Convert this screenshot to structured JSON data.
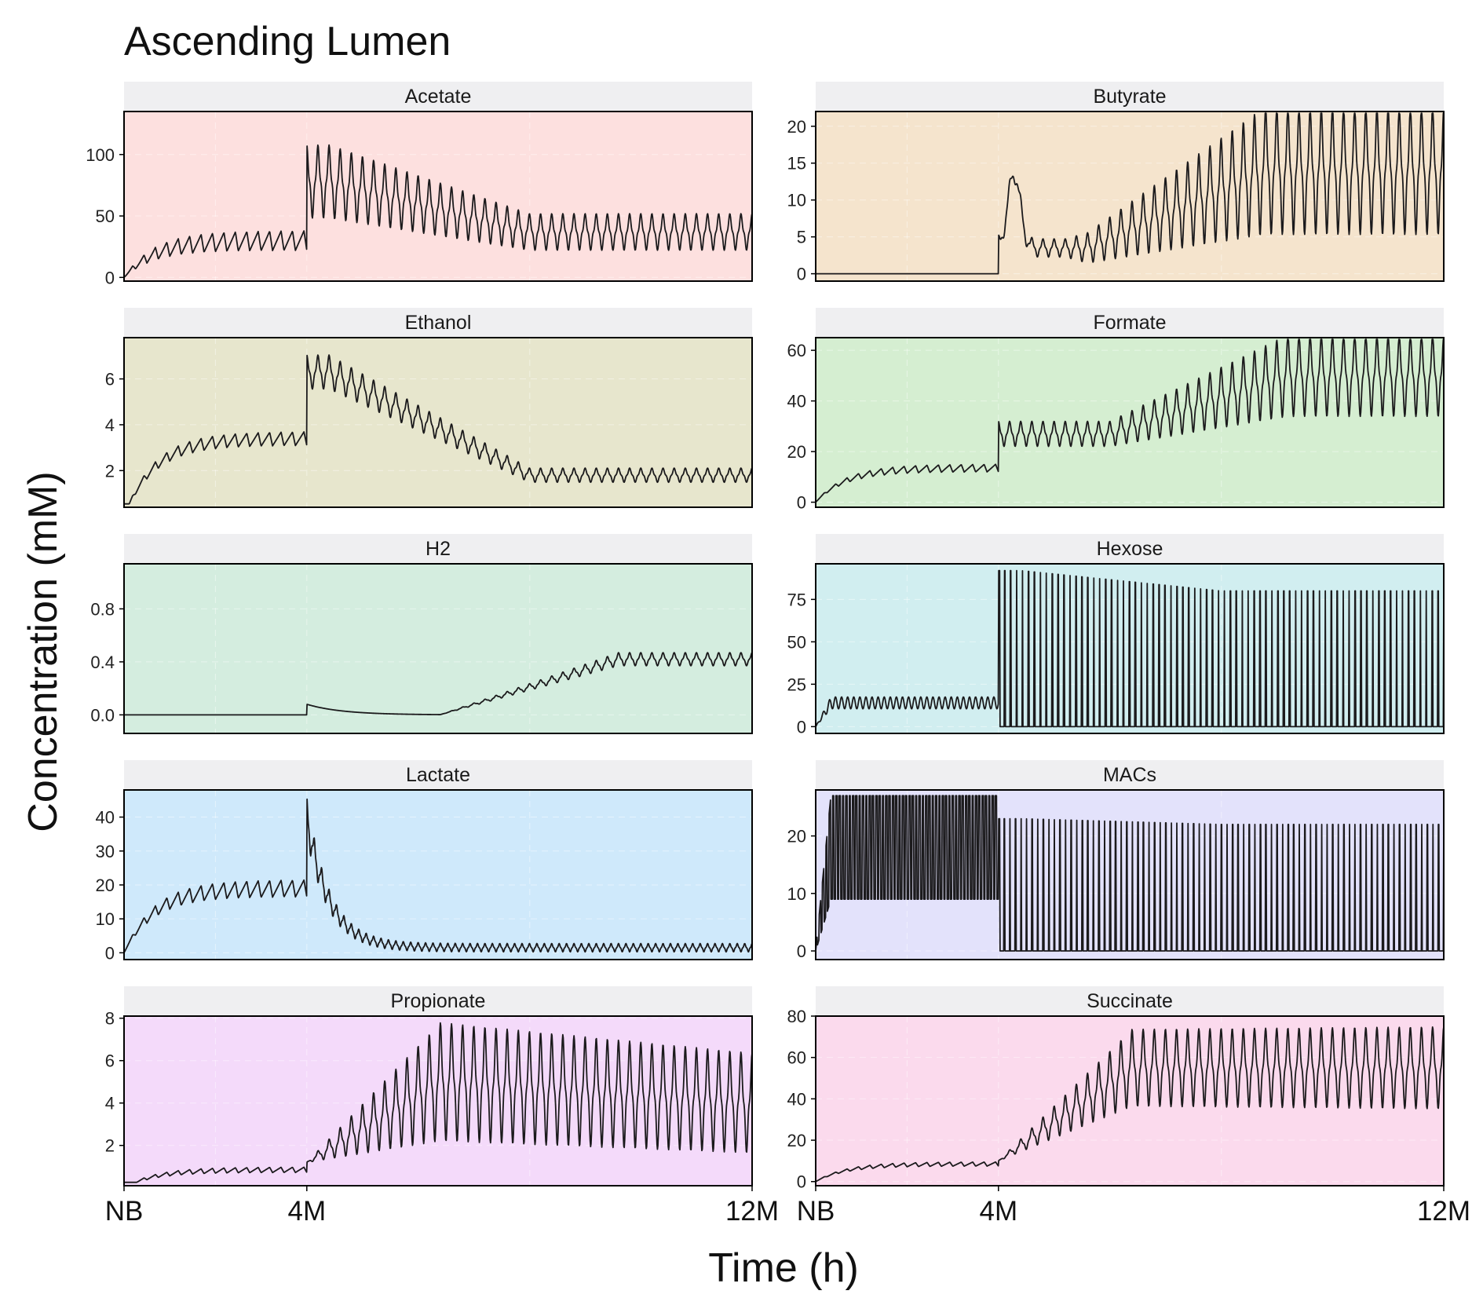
{
  "chart_data": {
    "type": "line",
    "title": "Ascending Lumen",
    "xlabel": "Time (h)",
    "ylabel": "Concentration (mM)",
    "grid": true,
    "x_ticks": [
      "NB",
      "4M",
      "12M"
    ],
    "x_tick_fractions": [
      0,
      0.291,
      1
    ],
    "panels": [
      {
        "name": "Acetate",
        "bg": "#fde0df",
        "yticks": [
          0,
          50,
          100
        ],
        "ylim": [
          -3,
          135
        ],
        "phase1": {
          "base": 30,
          "amp": 16,
          "n": 16
        },
        "phase2": {
          "start_mid": 78,
          "start_amp": 48,
          "end_mid": 37,
          "end_amp": 24,
          "n": 40
        }
      },
      {
        "name": "Butyrate",
        "bg": "#f5e4cd",
        "yticks": [
          0,
          5,
          10,
          15,
          20
        ],
        "ylim": [
          -1,
          22
        ],
        "phase1": {
          "base": 0,
          "amp": 0,
          "n": 0
        },
        "phase2": {
          "start_mid": 7,
          "start_amp": 4,
          "end_mid": 14,
          "end_amp": 14,
          "n": 40
        }
      },
      {
        "name": "Ethanol",
        "bg": "#e7e6cd",
        "yticks": [
          2,
          4,
          6
        ],
        "ylim": [
          0.4,
          7.8
        ],
        "phase1": {
          "base": 3.4,
          "amp": 0.6,
          "n": 16
        },
        "phase2": {
          "start_mid": 6.3,
          "start_amp": 1.2,
          "end_mid": 1.8,
          "end_amp": 0.5,
          "n": 40
        }
      },
      {
        "name": "Formate",
        "bg": "#d5eed1",
        "yticks": [
          0,
          20,
          40,
          60
        ],
        "ylim": [
          -2,
          65
        ],
        "phase1": {
          "base": 13.5,
          "amp": 3,
          "n": 16
        },
        "phase2": {
          "start_mid": 27,
          "start_amp": 8,
          "end_mid": 50,
          "end_amp": 26,
          "n": 40
        }
      },
      {
        "name": "H2",
        "bg": "#d4eddf",
        "yticks": [
          0.0,
          0.4,
          0.8
        ],
        "ylim": [
          -0.14,
          1.14
        ],
        "phase1": {
          "base": 0,
          "amp": 0,
          "n": 0
        },
        "phase2": {
          "start_mid": 0.06,
          "start_amp": 0.01,
          "end_mid": 0.42,
          "end_amp": 0.1,
          "n": 40
        }
      },
      {
        "name": "Hexose",
        "bg": "#d1eef0",
        "yticks": [
          0,
          25,
          50,
          75
        ],
        "ylim": [
          -4,
          96
        ],
        "phase1": {
          "base": 14,
          "amp": 10,
          "n": 30
        },
        "phase2": {
          "start_mid": 45,
          "start_amp": 92,
          "end_mid": 45,
          "end_amp": 80,
          "n": 75
        }
      },
      {
        "name": "Lactate",
        "bg": "#cfe9fb",
        "yticks": [
          0,
          10,
          20,
          30,
          40
        ],
        "ylim": [
          -2,
          48
        ],
        "phase1": {
          "base": 19,
          "amp": 5,
          "n": 16
        },
        "phase2": {
          "start_mid": 40,
          "start_amp": 10,
          "end_mid": 1.5,
          "end_amp": 2,
          "n": 60
        }
      },
      {
        "name": "MACs",
        "bg": "#e3e2fb",
        "yticks": [
          0,
          10,
          20
        ],
        "ylim": [
          -1.5,
          28
        ],
        "phase1": {
          "base": 10,
          "amp": 18,
          "n": 55
        },
        "phase2": {
          "start_mid": 11,
          "start_amp": 23,
          "end_mid": 11,
          "end_amp": 22,
          "n": 80
        }
      },
      {
        "name": "Propionate",
        "bg": "#f4dafa",
        "yticks": [
          2,
          4,
          6,
          8
        ],
        "ylim": [
          0.1,
          8.1
        ],
        "phase1": {
          "base": 0.85,
          "amp": 0.25,
          "n": 16
        },
        "phase2": {
          "start_mid": 5,
          "start_amp": 4.5,
          "end_mid": 4,
          "end_amp": 3.8,
          "n": 40
        }
      },
      {
        "name": "Succinate",
        "bg": "#fbdaed",
        "yticks": [
          0,
          20,
          40,
          60,
          80
        ],
        "ylim": [
          -2,
          80
        ],
        "phase1": {
          "base": 8.5,
          "amp": 2,
          "n": 16
        },
        "phase2": {
          "start_mid": 55,
          "start_amp": 30,
          "end_mid": 55,
          "end_amp": 32,
          "n": 40
        }
      }
    ]
  }
}
